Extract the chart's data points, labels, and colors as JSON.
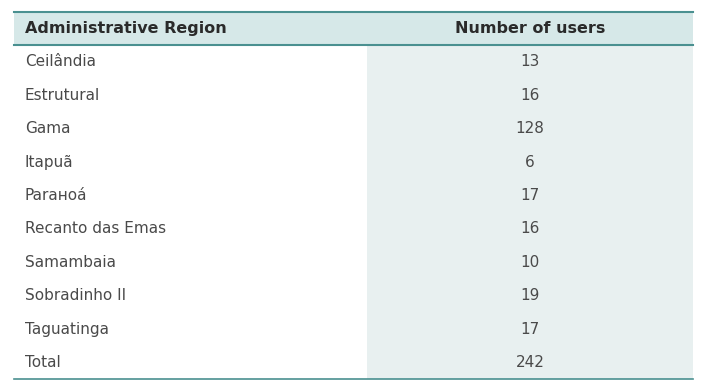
{
  "col1_header": "Administrative Region",
  "col2_header": "Number of users",
  "rows": [
    [
      "Ceilândia",
      "13"
    ],
    [
      "Estrutural",
      "16"
    ],
    [
      "Gama",
      "128"
    ],
    [
      "Itapuã",
      "6"
    ],
    [
      "Parаноá",
      "17"
    ],
    [
      "Recanto das Emas",
      "16"
    ],
    [
      "Samambaia",
      "10"
    ],
    [
      "Sobradinho II",
      "19"
    ],
    [
      "Taguatinga",
      "17"
    ],
    [
      "Total",
      "242"
    ]
  ],
  "col_split": 0.52,
  "header_bg": "#d6e8e8",
  "data_col1_bg": "#ffffff",
  "data_col2_bg": "#e8f0f0",
  "header_line_color": "#4a9090",
  "text_color": "#4a4a4a",
  "header_text_color": "#2a2a2a",
  "font_size": 11,
  "header_font_size": 11.5,
  "fig_width": 7.07,
  "fig_height": 3.87,
  "dpi": 100
}
